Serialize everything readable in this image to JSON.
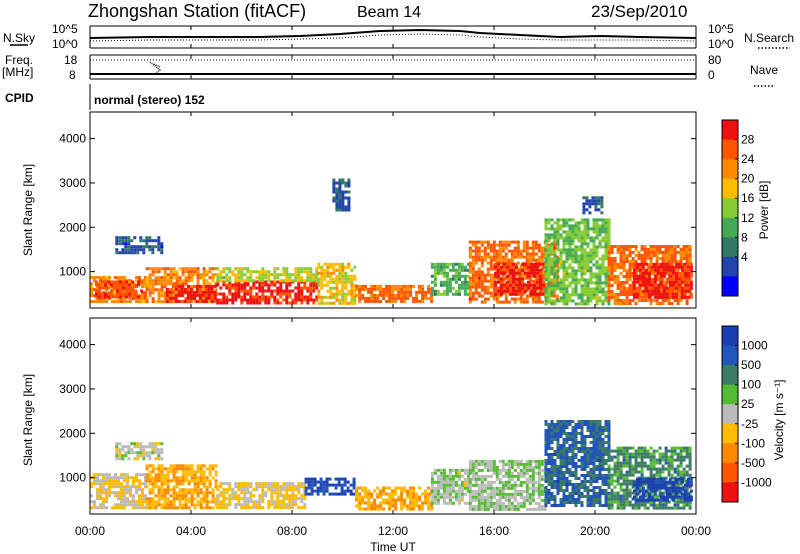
{
  "header": {
    "title": "Zhongshan Station (fitACF)",
    "beam": "Beam 14",
    "date": "23/Sep/2010"
  },
  "top_panels": {
    "nsky_label": "N.Sky",
    "nsky_ticks": [
      "10^5",
      "10^0"
    ],
    "nsearch_label": "N.Search",
    "nsearch_ticks": [
      "10^5",
      "10^0"
    ],
    "freq_label": "Freq.",
    "freq_unit": "[MHz]",
    "freq_ticks": [
      "18",
      "8"
    ],
    "nave_label": "Nave",
    "nave_ticks": [
      "80",
      "0"
    ],
    "cpid_label": "CPID",
    "cpid_value": "normal (stereo) 152"
  },
  "x_axis": {
    "label": "Time UT",
    "ticks": [
      "00:00",
      "04:00",
      "08:00",
      "12:00",
      "16:00",
      "20:00",
      "00:00"
    ]
  },
  "power_panel": {
    "ylabel": "Slant Range [km]",
    "yticks": [
      "4000",
      "3000",
      "2000",
      "1000"
    ],
    "colorbar_label": "Power [dB]",
    "colorbar_ticks": [
      "28",
      "24",
      "20",
      "16",
      "12",
      "8",
      "4"
    ],
    "colors": [
      "#ee1111",
      "#ff5500",
      "#ff8800",
      "#ffbb00",
      "#88cc33",
      "#44aa55",
      "#337766",
      "#2244aa",
      "#0000ff"
    ]
  },
  "velocity_panel": {
    "ylabel": "Slant Range [km]",
    "yticks": [
      "4000",
      "3000",
      "2000",
      "1000"
    ],
    "colorbar_label": "Velocity [m s⁻¹]",
    "colorbar_ticks": [
      "1000",
      "500",
      "100",
      "25",
      "-25",
      "-100",
      "-500",
      "-1000"
    ],
    "colors": [
      "#1a3fb0",
      "#2255bb",
      "#3d7a66",
      "#55bb33",
      "#bbbbbb",
      "#ffbb00",
      "#ff8800",
      "#ff5500",
      "#ee1111"
    ]
  },
  "chart_data": [
    {
      "type": "heatmap",
      "title": "Power",
      "xlabel": "Time UT",
      "ylabel": "Slant Range [km]",
      "xlim": [
        0,
        24
      ],
      "ylim": [
        180,
        4600
      ],
      "colorbar": "Power [dB]",
      "colorbar_range": [
        0,
        30
      ],
      "regions": [
        {
          "t0": 0.0,
          "t1": 2.2,
          "r0": 300,
          "r1": 900,
          "value": 22
        },
        {
          "t0": 0.2,
          "t1": 2.0,
          "r0": 450,
          "r1": 800,
          "value": 26
        },
        {
          "t0": 1.0,
          "t1": 2.8,
          "r0": 1400,
          "r1": 1800,
          "value": 6
        },
        {
          "t0": 2.2,
          "t1": 5.0,
          "r0": 300,
          "r1": 1100,
          "value": 22
        },
        {
          "t0": 3.0,
          "t1": 5.0,
          "r0": 350,
          "r1": 700,
          "value": 28
        },
        {
          "t0": 5.0,
          "t1": 9.0,
          "r0": 300,
          "r1": 800,
          "value": 28
        },
        {
          "t0": 5.0,
          "t1": 9.0,
          "r0": 800,
          "r1": 1100,
          "value": 16
        },
        {
          "t0": 9.0,
          "t1": 10.5,
          "r0": 300,
          "r1": 1200,
          "value": 18
        },
        {
          "t0": 9.6,
          "t1": 10.2,
          "r0": 2400,
          "r1": 3100,
          "value": 6
        },
        {
          "t0": 10.5,
          "t1": 13.5,
          "r0": 300,
          "r1": 700,
          "value": 24
        },
        {
          "t0": 13.5,
          "t1": 15.0,
          "r0": 500,
          "r1": 1200,
          "value": 12
        },
        {
          "t0": 15.0,
          "t1": 18.5,
          "r0": 300,
          "r1": 1700,
          "value": 24
        },
        {
          "t0": 16.0,
          "t1": 18.0,
          "r0": 500,
          "r1": 1200,
          "value": 28
        },
        {
          "t0": 18.0,
          "t1": 20.5,
          "r0": 300,
          "r1": 2200,
          "value": 14
        },
        {
          "t0": 19.5,
          "t1": 20.3,
          "r0": 2300,
          "r1": 2700,
          "value": 6
        },
        {
          "t0": 20.5,
          "t1": 23.8,
          "r0": 300,
          "r1": 1600,
          "value": 24
        },
        {
          "t0": 21.5,
          "t1": 23.8,
          "r0": 400,
          "r1": 1200,
          "value": 28
        }
      ]
    },
    {
      "type": "heatmap",
      "title": "Velocity",
      "xlabel": "Time UT",
      "ylabel": "Slant Range [km]",
      "xlim": [
        0,
        24
      ],
      "ylim": [
        180,
        4600
      ],
      "colorbar": "Velocity [m s⁻¹]",
      "colorbar_range": [
        -1000,
        1000
      ],
      "regions": [
        {
          "t0": 0.0,
          "t1": 2.2,
          "r0": 300,
          "r1": 1100,
          "value": -100
        },
        {
          "t0": 1.0,
          "t1": 2.8,
          "r0": 1400,
          "r1": 1800,
          "value": 0
        },
        {
          "t0": 2.2,
          "t1": 5.0,
          "r0": 300,
          "r1": 1300,
          "value": -300
        },
        {
          "t0": 5.0,
          "t1": 8.5,
          "r0": 300,
          "r1": 900,
          "value": -150
        },
        {
          "t0": 8.5,
          "t1": 10.5,
          "r0": 600,
          "r1": 1000,
          "value": 800
        },
        {
          "t0": 10.5,
          "t1": 13.5,
          "r0": 300,
          "r1": 800,
          "value": -300
        },
        {
          "t0": 13.5,
          "t1": 15.0,
          "r0": 400,
          "r1": 1200,
          "value": 50
        },
        {
          "t0": 15.0,
          "t1": 18.0,
          "r0": 300,
          "r1": 1400,
          "value": 80
        },
        {
          "t0": 18.0,
          "t1": 20.5,
          "r0": 400,
          "r1": 2300,
          "value": 600
        },
        {
          "t0": 20.5,
          "t1": 23.8,
          "r0": 300,
          "r1": 1700,
          "value": 400
        },
        {
          "t0": 21.5,
          "t1": 23.8,
          "r0": 500,
          "r1": 1000,
          "value": 900
        }
      ]
    }
  ]
}
